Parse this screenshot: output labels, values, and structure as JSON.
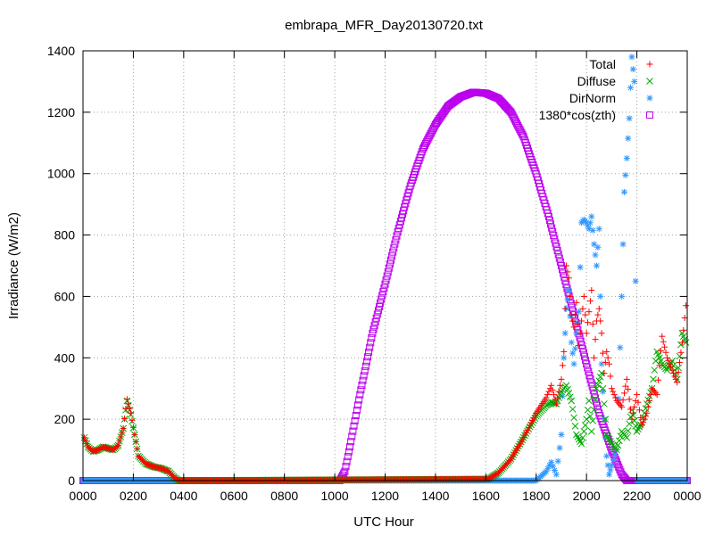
{
  "chart_data": {
    "type": "scatter",
    "title": "embrapa_MFR_Day20130720.txt",
    "xlabel": "UTC Hour",
    "ylabel": "Irradiance (W/m2)",
    "xlim": [
      0,
      24
    ],
    "ylim": [
      0,
      1400
    ],
    "grid": true,
    "legend_position": "top-right",
    "x_ticks": [
      0,
      2,
      4,
      6,
      8,
      10,
      12,
      14,
      16,
      18,
      20,
      22,
      24
    ],
    "x_tick_labels": [
      "0000",
      "0200",
      "0400",
      "0600",
      "0800",
      "1000",
      "1200",
      "1400",
      "1600",
      "1800",
      "2000",
      "2200",
      "0000"
    ],
    "y_ticks": [
      0,
      200,
      400,
      600,
      800,
      1000,
      1200,
      1400
    ],
    "y_tick_labels": [
      "0",
      "200",
      "400",
      "600",
      "800",
      "1000",
      "1200",
      "1400"
    ],
    "series": [
      {
        "name": "Total",
        "color": "#ff0000",
        "marker": "plus",
        "points": [
          [
            0.05,
            140
          ],
          [
            0.2,
            110
          ],
          [
            0.4,
            95
          ],
          [
            0.6,
            100
          ],
          [
            0.8,
            110
          ],
          [
            1.0,
            105
          ],
          [
            1.2,
            100
          ],
          [
            1.4,
            115
          ],
          [
            1.6,
            170
          ],
          [
            1.75,
            265
          ],
          [
            1.9,
            220
          ],
          [
            2.05,
            150
          ],
          [
            2.2,
            80
          ],
          [
            2.5,
            55
          ],
          [
            2.8,
            45
          ],
          [
            3.1,
            40
          ],
          [
            3.4,
            30
          ],
          [
            3.6,
            12
          ],
          [
            3.8,
            0
          ],
          [
            16.1,
            5
          ],
          [
            16.5,
            25
          ],
          [
            17.0,
            70
          ],
          [
            17.5,
            140
          ],
          [
            18.0,
            220
          ],
          [
            18.4,
            270
          ],
          [
            18.6,
            310
          ],
          [
            18.8,
            250
          ],
          [
            19.0,
            330
          ],
          [
            19.1,
            420
          ],
          [
            19.2,
            700
          ],
          [
            19.3,
            660
          ],
          [
            19.4,
            540
          ],
          [
            19.5,
            500
          ],
          [
            19.6,
            580
          ],
          [
            19.7,
            440
          ],
          [
            19.8,
            520
          ],
          [
            19.9,
            600
          ],
          [
            20.0,
            480
          ],
          [
            20.1,
            550
          ],
          [
            20.2,
            620
          ],
          [
            20.3,
            400
          ],
          [
            20.4,
            520
          ],
          [
            20.5,
            560
          ],
          [
            20.6,
            480
          ],
          [
            20.7,
            350
          ],
          [
            20.8,
            420
          ],
          [
            20.9,
            380
          ],
          [
            21.0,
            300
          ],
          [
            21.2,
            260
          ],
          [
            21.4,
            240
          ],
          [
            21.6,
            330
          ],
          [
            21.8,
            200
          ],
          [
            22.0,
            280
          ],
          [
            22.2,
            180
          ],
          [
            22.4,
            220
          ],
          [
            22.6,
            300
          ],
          [
            22.8,
            280
          ],
          [
            23.0,
            470
          ],
          [
            23.2,
            400
          ],
          [
            23.4,
            360
          ],
          [
            23.6,
            320
          ],
          [
            23.8,
            450
          ],
          [
            23.95,
            570
          ]
        ]
      },
      {
        "name": "Diffuse",
        "color": "#00aa00",
        "marker": "cross",
        "points": [
          [
            0.05,
            140
          ],
          [
            0.2,
            110
          ],
          [
            0.4,
            95
          ],
          [
            0.6,
            100
          ],
          [
            0.8,
            110
          ],
          [
            1.0,
            105
          ],
          [
            1.2,
            100
          ],
          [
            1.4,
            115
          ],
          [
            1.6,
            170
          ],
          [
            1.75,
            260
          ],
          [
            1.9,
            215
          ],
          [
            2.05,
            150
          ],
          [
            2.2,
            80
          ],
          [
            2.5,
            55
          ],
          [
            2.8,
            45
          ],
          [
            3.1,
            40
          ],
          [
            3.4,
            30
          ],
          [
            3.6,
            12
          ],
          [
            3.8,
            0
          ],
          [
            16.1,
            5
          ],
          [
            16.5,
            25
          ],
          [
            17.0,
            70
          ],
          [
            17.5,
            140
          ],
          [
            18.0,
            210
          ],
          [
            18.4,
            245
          ],
          [
            18.6,
            255
          ],
          [
            18.8,
            250
          ],
          [
            19.0,
            290
          ],
          [
            19.2,
            310
          ],
          [
            19.4,
            260
          ],
          [
            19.6,
            150
          ],
          [
            19.8,
            120
          ],
          [
            20.0,
            200
          ],
          [
            20.1,
            260
          ],
          [
            20.2,
            160
          ],
          [
            20.4,
            300
          ],
          [
            20.6,
            350
          ],
          [
            20.8,
            150
          ],
          [
            21.0,
            120
          ],
          [
            21.2,
            100
          ],
          [
            21.4,
            160
          ],
          [
            21.6,
            140
          ],
          [
            21.8,
            230
          ],
          [
            22.0,
            160
          ],
          [
            22.2,
            190
          ],
          [
            22.4,
            250
          ],
          [
            22.6,
            300
          ],
          [
            22.8,
            420
          ],
          [
            23.0,
            380
          ],
          [
            23.2,
            360
          ],
          [
            23.4,
            390
          ],
          [
            23.6,
            330
          ],
          [
            23.8,
            480
          ],
          [
            23.95,
            450
          ]
        ]
      },
      {
        "name": "DirNorm",
        "color": "#3399ff",
        "marker": "star",
        "points": [
          [
            0.0,
            0
          ],
          [
            4.0,
            0
          ],
          [
            8.0,
            0
          ],
          [
            12.0,
            0
          ],
          [
            16.0,
            0
          ],
          [
            18.0,
            0
          ],
          [
            18.4,
            30
          ],
          [
            18.6,
            60
          ],
          [
            18.8,
            20
          ],
          [
            19.0,
            150
          ],
          [
            19.1,
            400
          ],
          [
            19.2,
            560
          ],
          [
            19.3,
            620
          ],
          [
            19.4,
            450
          ],
          [
            19.5,
            380
          ],
          [
            19.6,
            480
          ],
          [
            19.7,
            550
          ],
          [
            19.8,
            840
          ],
          [
            19.9,
            850
          ],
          [
            20.0,
            840
          ],
          [
            20.1,
            820
          ],
          [
            20.2,
            860
          ],
          [
            20.3,
            770
          ],
          [
            20.4,
            700
          ],
          [
            20.5,
            820
          ],
          [
            20.6,
            380
          ],
          [
            20.7,
            200
          ],
          [
            20.8,
            80
          ],
          [
            20.9,
            20
          ],
          [
            21.0,
            50
          ],
          [
            21.2,
            100
          ],
          [
            21.4,
            600
          ],
          [
            21.5,
            940
          ],
          [
            21.6,
            1050
          ],
          [
            21.7,
            1180
          ],
          [
            21.8,
            1380
          ],
          [
            21.9,
            1300
          ],
          [
            22.0,
            0
          ],
          [
            24.0,
            0
          ]
        ]
      },
      {
        "name": "1380*cos(zth)",
        "color": "#bb00ee",
        "marker": "square",
        "points": [
          [
            0,
            0
          ],
          [
            10.2,
            0
          ],
          [
            10.4,
            30
          ],
          [
            10.6,
            110
          ],
          [
            11.0,
            280
          ],
          [
            11.5,
            480
          ],
          [
            12.0,
            640
          ],
          [
            12.5,
            810
          ],
          [
            13.0,
            960
          ],
          [
            13.5,
            1080
          ],
          [
            14.0,
            1160
          ],
          [
            14.5,
            1220
          ],
          [
            15.0,
            1250
          ],
          [
            15.5,
            1265
          ],
          [
            16.0,
            1262
          ],
          [
            16.5,
            1245
          ],
          [
            17.0,
            1200
          ],
          [
            17.5,
            1120
          ],
          [
            18.0,
            1000
          ],
          [
            18.5,
            860
          ],
          [
            19.0,
            700
          ],
          [
            19.5,
            540
          ],
          [
            20.0,
            380
          ],
          [
            20.5,
            220
          ],
          [
            21.0,
            100
          ],
          [
            21.4,
            20
          ],
          [
            21.6,
            0
          ],
          [
            24,
            0
          ]
        ]
      }
    ]
  }
}
